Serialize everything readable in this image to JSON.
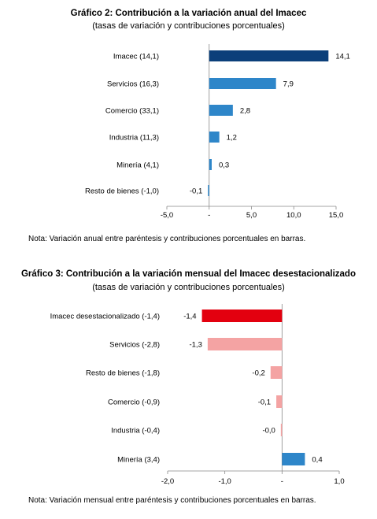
{
  "chart_data": [
    {
      "type": "bar",
      "orientation": "horizontal",
      "title": "Gráfico 2: Contribución a la variación anual del Imacec",
      "subtitle": "(tasas de variación y contribuciones porcentuales)",
      "categories": [
        "Imacec (14,1)",
        "Servicios (16,3)",
        "Comercio (33,1)",
        "Industria (11,3)",
        "Minería (4,1)",
        "Resto de bienes (-1,0)"
      ],
      "values": [
        14.1,
        7.9,
        2.8,
        1.2,
        0.3,
        -0.1
      ],
      "value_labels": [
        "14,1",
        "7,9",
        "2,8",
        "1,2",
        "0,3",
        "-0,1"
      ],
      "colors": [
        "#0b3f7a",
        "#2e86c9",
        "#2e86c9",
        "#2e86c9",
        "#2e86c9",
        "#2e86c9"
      ],
      "xlim": [
        -5,
        15
      ],
      "ticks": [
        -5,
        0,
        5,
        10,
        15
      ],
      "tick_labels": [
        "-5,0",
        "-",
        "5,0",
        "10,0",
        "15,0"
      ],
      "grid": false,
      "note": "Nota: Variación anual entre paréntesis y contribuciones porcentuales en barras."
    },
    {
      "type": "bar",
      "orientation": "horizontal",
      "title": "Gráfico 3: Contribución a la variación mensual del Imacec desestacionalizado",
      "subtitle": "(tasas de variación y contribuciones porcentuales)",
      "categories": [
        "Imacec desestacionalizado (-1,4)",
        "Servicios (-2,8)",
        "Resto de bienes (-1,8)",
        "Comercio (-0,9)",
        "Industria (-0,4)",
        "Minería (3,4)"
      ],
      "values": [
        -1.4,
        -1.3,
        -0.2,
        -0.1,
        -0.02,
        0.4
      ],
      "value_labels": [
        "-1,4",
        "-1,3",
        "-0,2",
        "-0,1",
        "-0,0",
        "0,4"
      ],
      "colors": [
        "#e3000f",
        "#f4a3a3",
        "#f4a3a3",
        "#f4a3a3",
        "#f4a3a3",
        "#2e86c9"
      ],
      "xlim": [
        -2,
        1
      ],
      "ticks": [
        -2,
        -1,
        0,
        1
      ],
      "tick_labels": [
        "-2,0",
        "-1,0",
        "-",
        "1,0"
      ],
      "grid": false,
      "note": "Nota: Variación mensual entre paréntesis y contribuciones porcentuales en barras."
    }
  ]
}
